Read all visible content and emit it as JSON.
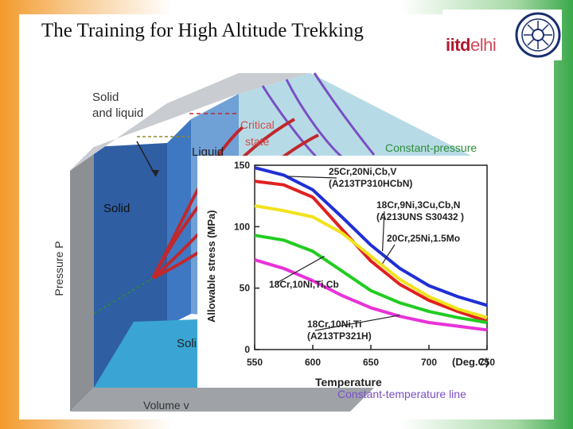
{
  "slide_title": "The Training for High Altitude Trekking",
  "logo": {
    "text_main": "iitd",
    "text_accent": "elhi",
    "brand_color": "#b5172f"
  },
  "pv_diagram": {
    "labels": {
      "solid_and_liquid_1": "Solid",
      "solid_and_liquid_2": "and liquid",
      "critical_state_1": "Critical",
      "critical_state_2": "state",
      "liquid": "Liquid",
      "solid": "Solid",
      "solid_bottom": "Soli",
      "constant_pressure": "Constant-pressure",
      "pressure_axis": "Pressure   P",
      "volume_axis": "Volume   v",
      "constant_temperature": "Constant-temperature line"
    },
    "colors": {
      "constant_pressure": "#2e8b3a",
      "critical": "#c0282d",
      "isotherm": "#7a4fc4"
    }
  },
  "chart_data": {
    "type": "line",
    "ylabel": "Allowable stress (MPa)",
    "xlabel": "Temperature",
    "x_unit": "(Deg.C)",
    "xlim": [
      550,
      750
    ],
    "ylim": [
      0,
      150
    ],
    "x_ticks": [
      550,
      600,
      650,
      700,
      750
    ],
    "y_ticks": [
      0,
      50,
      100,
      150
    ],
    "series": [
      {
        "name": "25Cr,20Ni,Cb,V (A213TP310HCbN)",
        "color": "#1f2fd6",
        "points": [
          [
            550,
            148
          ],
          [
            575,
            142
          ],
          [
            600,
            130
          ],
          [
            625,
            108
          ],
          [
            650,
            85
          ],
          [
            675,
            66
          ],
          [
            700,
            52
          ],
          [
            725,
            43
          ],
          [
            750,
            36
          ]
        ]
      },
      {
        "name": "20Cr,25Ni,1.5Mo",
        "color": "#e02020",
        "points": [
          [
            550,
            137
          ],
          [
            575,
            134
          ],
          [
            600,
            124
          ],
          [
            625,
            98
          ],
          [
            650,
            72
          ],
          [
            675,
            53
          ],
          [
            700,
            40
          ],
          [
            725,
            31
          ],
          [
            750,
            23
          ]
        ]
      },
      {
        "name": "18Cr,9Ni,3Cu,Cb,N (A213UNS S30432 )",
        "color": "#f2e21c",
        "points": [
          [
            550,
            117
          ],
          [
            575,
            113
          ],
          [
            600,
            108
          ],
          [
            625,
            95
          ],
          [
            650,
            76
          ],
          [
            675,
            57
          ],
          [
            700,
            43
          ],
          [
            725,
            33
          ],
          [
            750,
            26
          ]
        ]
      },
      {
        "name": "18Cr,10Ni,Ti,Cb",
        "color": "#22cc22",
        "points": [
          [
            550,
            93
          ],
          [
            575,
            89
          ],
          [
            600,
            80
          ],
          [
            625,
            64
          ],
          [
            650,
            48
          ],
          [
            675,
            38
          ],
          [
            700,
            31
          ],
          [
            725,
            26
          ],
          [
            750,
            22
          ]
        ]
      },
      {
        "name": "18Cr,10Ni,Ti (A213TP321H)",
        "color": "#e832d8",
        "points": [
          [
            550,
            73
          ],
          [
            575,
            66
          ],
          [
            600,
            56
          ],
          [
            625,
            44
          ],
          [
            650,
            34
          ],
          [
            675,
            27
          ],
          [
            700,
            22
          ],
          [
            725,
            19
          ],
          [
            750,
            16
          ]
        ]
      }
    ],
    "annotations": [
      {
        "line1": "25Cr,20Ni,Cb,V",
        "line2": "(A213TP310HCbN)"
      },
      {
        "line1": "18Cr,9Ni,3Cu,Cb,N",
        "line2": "(A213UNS S30432 )"
      },
      {
        "line1": "20Cr,25Ni,1.5Mo",
        "line2": ""
      },
      {
        "line1": "18Cr,10Ni,Ti,Cb",
        "line2": ""
      },
      {
        "line1": "18Cr,10Ni,Ti",
        "line2": "(A213TP321H)"
      }
    ]
  }
}
